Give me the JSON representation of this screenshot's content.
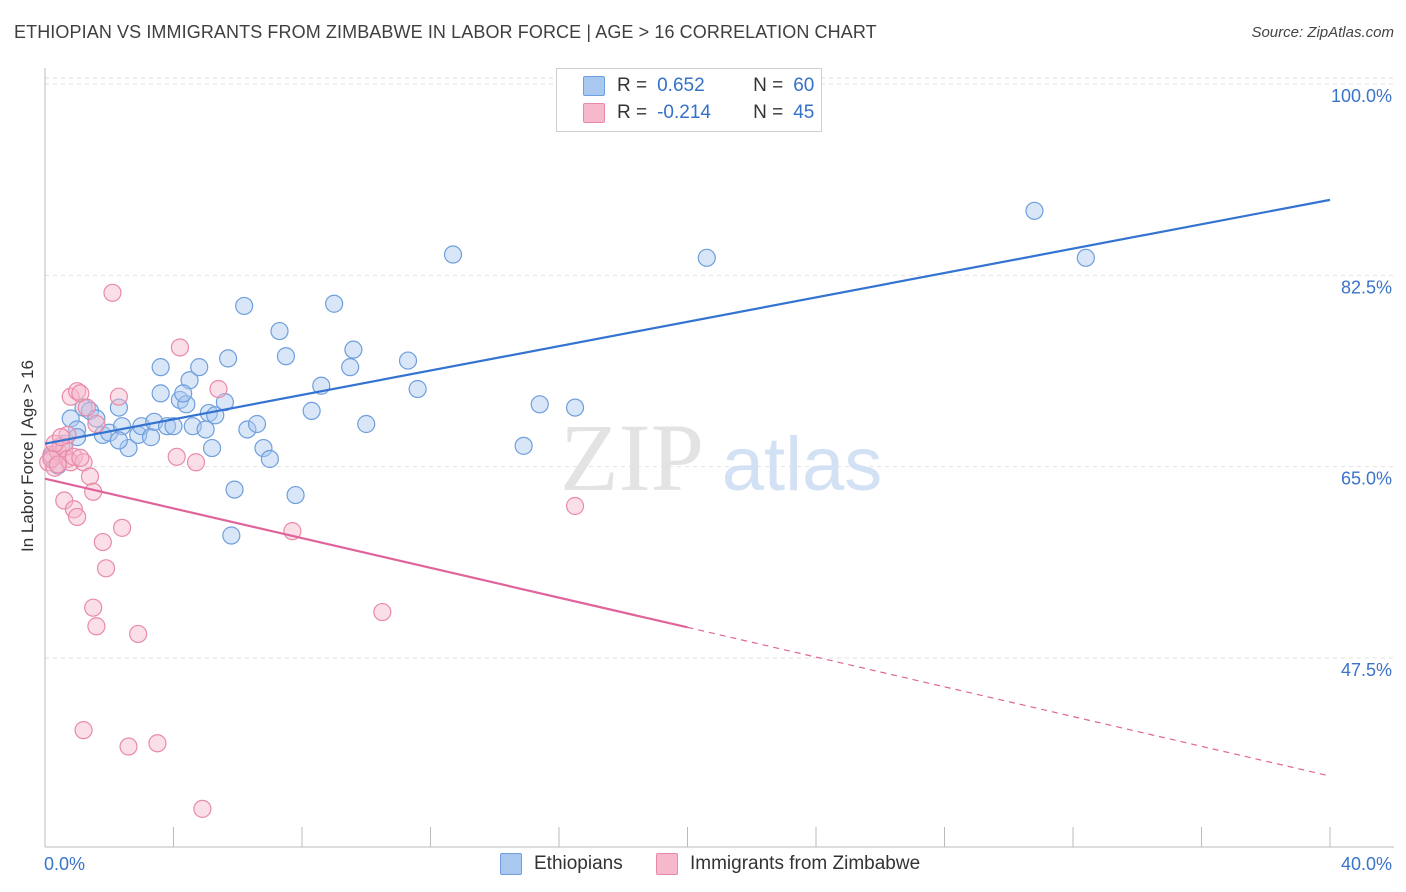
{
  "header": {
    "title": "ETHIOPIAN VS IMMIGRANTS FROM ZIMBABWE IN LABOR FORCE | AGE > 16 CORRELATION CHART",
    "source": "Source: ZipAtlas.com"
  },
  "watermark": {
    "zip": "ZIP",
    "atlas": "atlas"
  },
  "stats": [
    {
      "r_label": "R =",
      "r_value": "0.652",
      "n_label": "N =",
      "n_value": "60",
      "color": "#a8c8f0",
      "border": "#6f9fdc"
    },
    {
      "r_label": "R =",
      "r_value": "-0.214",
      "n_label": "N =",
      "n_value": "45",
      "color": "#f6b8cb",
      "border": "#e98aa8"
    }
  ],
  "legend": [
    {
      "label": "Ethiopians",
      "color": "#a8c8f0",
      "border": "#6f9fdc"
    },
    {
      "label": "Immigrants from Zimbabwe",
      "color": "#f6b8cb",
      "border": "#e98aa8"
    }
  ],
  "chart_data": {
    "type": "scatter",
    "title": "ETHIOPIAN VS IMMIGRANTS FROM ZIMBABWE IN LABOR FORCE | AGE > 16 CORRELATION CHART",
    "xlabel": "",
    "ylabel": "In Labor Force | Age > 16",
    "xlim": [
      0,
      40
    ],
    "ylim": [
      34,
      102
    ],
    "x_tick_labels": [
      "0.0%",
      "40.0%"
    ],
    "y_ticks": [
      47.5,
      65.0,
      82.5,
      100.0
    ],
    "y_tick_labels": [
      "47.5%",
      "65.0%",
      "82.5%",
      "100.0%"
    ],
    "grid": true,
    "series": [
      {
        "name": "Ethiopians",
        "color": "#6f9fdc",
        "fill": "#a8c8f0",
        "line_color": "#3474d0",
        "trend": {
          "x0": 0.0,
          "y0": 68.2,
          "x1": 40.0,
          "y1": 90.5,
          "dash_from": null
        },
        "points": [
          [
            0.2,
            67.0
          ],
          [
            0.4,
            66.2
          ],
          [
            0.6,
            68.2
          ],
          [
            0.8,
            70.5
          ],
          [
            1.0,
            69.5
          ],
          [
            1.2,
            71.5
          ],
          [
            1.4,
            71.2
          ],
          [
            1.6,
            70.5
          ],
          [
            1.8,
            69.0
          ],
          [
            2.0,
            69.2
          ],
          [
            2.3,
            71.5
          ],
          [
            2.4,
            69.8
          ],
          [
            2.6,
            67.8
          ],
          [
            2.9,
            69.0
          ],
          [
            3.0,
            69.8
          ],
          [
            3.3,
            68.8
          ],
          [
            3.4,
            70.2
          ],
          [
            3.6,
            72.8
          ],
          [
            3.8,
            69.8
          ],
          [
            3.6,
            75.2
          ],
          [
            4.0,
            69.8
          ],
          [
            4.2,
            72.2
          ],
          [
            4.4,
            71.8
          ],
          [
            4.6,
            69.8
          ],
          [
            4.5,
            74.0
          ],
          [
            4.8,
            75.2
          ],
          [
            5.0,
            69.5
          ],
          [
            5.1,
            71.0
          ],
          [
            5.3,
            70.8
          ],
          [
            5.2,
            67.8
          ],
          [
            5.6,
            72.0
          ],
          [
            5.7,
            76.0
          ],
          [
            5.9,
            64.0
          ],
          [
            6.2,
            80.8
          ],
          [
            6.3,
            69.5
          ],
          [
            6.6,
            70.0
          ],
          [
            6.8,
            67.8
          ],
          [
            7.0,
            66.8
          ],
          [
            7.3,
            78.5
          ],
          [
            7.5,
            76.2
          ],
          [
            7.8,
            63.5
          ],
          [
            8.3,
            71.2
          ],
          [
            8.6,
            73.5
          ],
          [
            9.0,
            81.0
          ],
          [
            9.5,
            75.2
          ],
          [
            9.6,
            76.8
          ],
          [
            10.0,
            70.0
          ],
          [
            11.3,
            75.8
          ],
          [
            11.6,
            73.2
          ],
          [
            12.7,
            85.5
          ],
          [
            14.9,
            68.0
          ],
          [
            15.4,
            71.8
          ],
          [
            16.5,
            71.5
          ],
          [
            20.6,
            85.2
          ],
          [
            30.8,
            89.5
          ],
          [
            32.4,
            85.2
          ],
          [
            5.8,
            59.8
          ],
          [
            4.3,
            72.8
          ],
          [
            2.3,
            68.5
          ],
          [
            1.0,
            68.8
          ]
        ]
      },
      {
        "name": "Immigrants from Zimbabwe",
        "color": "#e98aa8",
        "fill": "#f6b8cb",
        "line_color": "#e0649b",
        "trend": {
          "x0": 0.0,
          "y0": 65.0,
          "x1": 40.0,
          "y1": 37.8,
          "dash_from": 20.0
        },
        "points": [
          [
            0.1,
            66.5
          ],
          [
            0.2,
            67.2
          ],
          [
            0.3,
            66.0
          ],
          [
            0.4,
            67.5
          ],
          [
            0.5,
            68.0
          ],
          [
            0.6,
            67.8
          ],
          [
            0.7,
            66.8
          ],
          [
            0.8,
            66.5
          ],
          [
            0.9,
            67.0
          ],
          [
            0.6,
            63.0
          ],
          [
            0.7,
            69.0
          ],
          [
            0.8,
            72.5
          ],
          [
            1.0,
            73.0
          ],
          [
            1.1,
            72.8
          ],
          [
            0.9,
            62.2
          ],
          [
            1.0,
            61.5
          ],
          [
            1.2,
            66.5
          ],
          [
            1.3,
            71.5
          ],
          [
            1.4,
            65.2
          ],
          [
            1.5,
            63.8
          ],
          [
            1.6,
            70.0
          ],
          [
            1.8,
            59.2
          ],
          [
            1.9,
            56.8
          ],
          [
            1.5,
            53.2
          ],
          [
            1.6,
            51.5
          ],
          [
            2.1,
            82.0
          ],
          [
            2.3,
            72.5
          ],
          [
            2.4,
            60.5
          ],
          [
            2.9,
            50.8
          ],
          [
            3.5,
            40.8
          ],
          [
            2.6,
            40.5
          ],
          [
            1.2,
            42.0
          ],
          [
            4.2,
            77.0
          ],
          [
            4.1,
            67.0
          ],
          [
            4.7,
            66.5
          ],
          [
            4.9,
            34.8
          ],
          [
            5.4,
            73.2
          ],
          [
            7.7,
            60.2
          ],
          [
            10.5,
            52.8
          ],
          [
            16.5,
            62.5
          ],
          [
            0.3,
            68.2
          ],
          [
            0.5,
            68.8
          ],
          [
            0.2,
            66.8
          ],
          [
            0.4,
            66.3
          ],
          [
            1.1,
            66.9
          ]
        ]
      }
    ]
  }
}
